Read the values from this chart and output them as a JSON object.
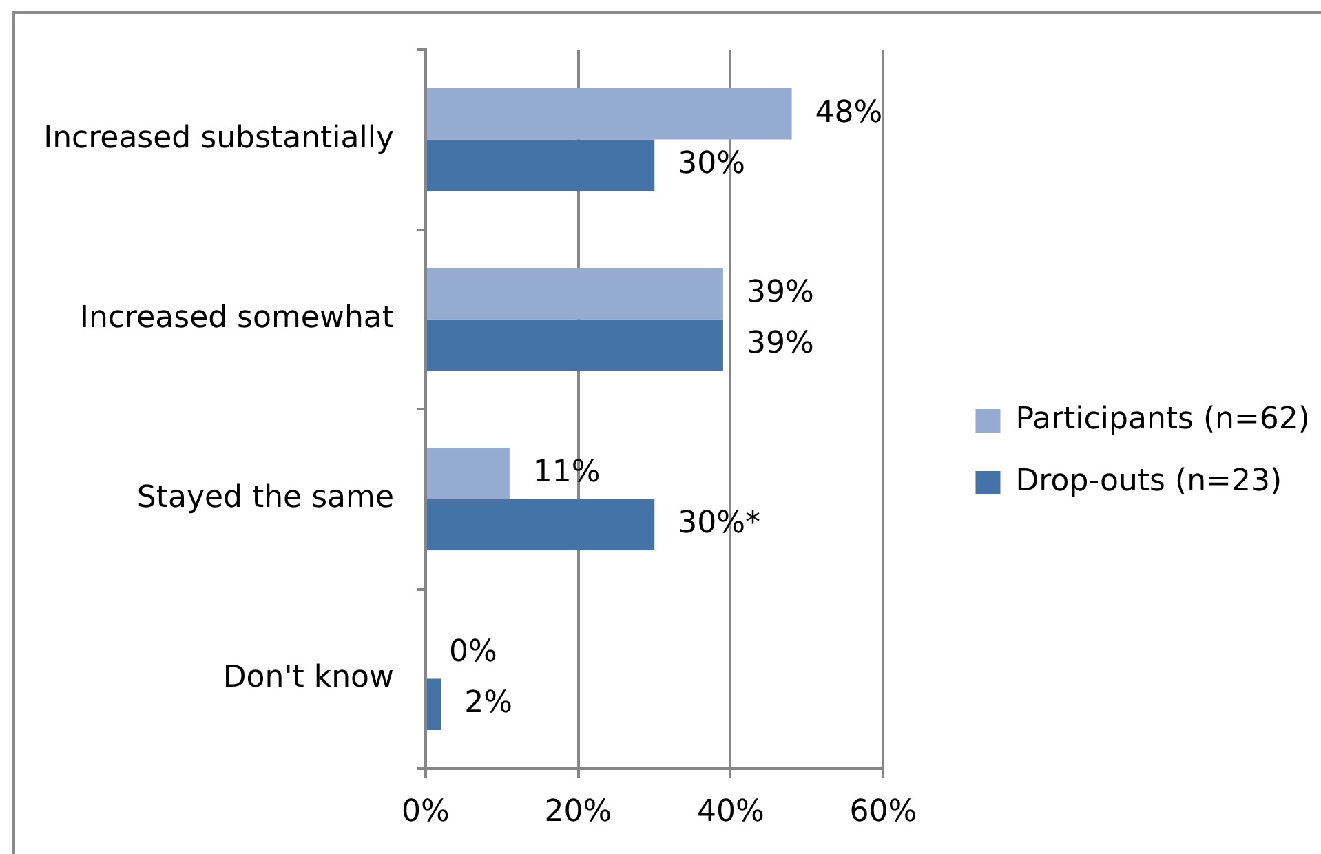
{
  "chart_data": {
    "type": "bar",
    "orientation": "horizontal",
    "categories": [
      "Increased substantially",
      "Increased somewhat",
      "Stayed the same",
      "Don't know"
    ],
    "series": [
      {
        "name": "Participants (n=62)",
        "color": "#95abd1",
        "values": [
          48,
          39,
          11,
          0
        ],
        "value_labels": [
          "48%",
          "39%",
          "11%",
          "0%"
        ]
      },
      {
        "name": "Drop-outs (n=23)",
        "color": "#4572a7",
        "values": [
          30,
          39,
          30,
          2
        ],
        "value_labels": [
          "30%",
          "39%",
          "30%*",
          "2%"
        ]
      }
    ],
    "xlim": [
      0,
      60
    ],
    "xticks": [
      {
        "value": 0,
        "label": "0%"
      },
      {
        "value": 20,
        "label": "20%"
      },
      {
        "value": 40,
        "label": "40%"
      },
      {
        "value": 60,
        "label": "60%"
      }
    ],
    "grid": "x",
    "legend": "right"
  }
}
